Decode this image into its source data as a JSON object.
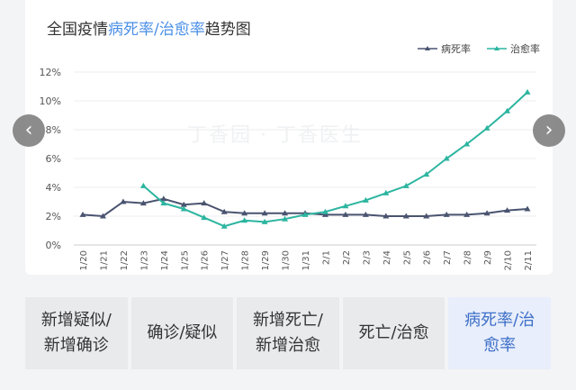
{
  "header": {
    "title_prefix": "全国疫情",
    "title_highlight": "病死率/治愈率",
    "title_suffix": "趋势图"
  },
  "watermark": "丁香园 · 丁香医生",
  "chart_data": {
    "type": "line",
    "title": "全国疫情病死率/治愈率趋势图",
    "categories": [
      "1/20",
      "1/21",
      "1/22",
      "1/23",
      "1/24",
      "1/25",
      "1/26",
      "1/27",
      "1/28",
      "1/29",
      "1/30",
      "1/31",
      "2/1",
      "2/2",
      "2/3",
      "2/4",
      "2/5",
      "2/6",
      "2/7",
      "2/8",
      "2/9",
      "2/10",
      "2/11"
    ],
    "y_ticks": [
      "0%",
      "2%",
      "4%",
      "6%",
      "8%",
      "10%",
      "12%"
    ],
    "ylim": [
      0,
      12
    ],
    "grid": true,
    "legend_position": "top-right",
    "series": [
      {
        "name": "病死率",
        "color": "#4a5470",
        "values": [
          2.1,
          2.0,
          3.0,
          2.9,
          3.2,
          2.8,
          2.9,
          2.3,
          2.2,
          2.2,
          2.2,
          2.2,
          2.1,
          2.1,
          2.1,
          2.0,
          2.0,
          2.0,
          2.1,
          2.1,
          2.2,
          2.4,
          2.5
        ]
      },
      {
        "name": "治愈率",
        "color": "#2cb5a0",
        "values": [
          null,
          null,
          null,
          4.1,
          2.9,
          2.5,
          1.9,
          1.3,
          1.7,
          1.6,
          1.8,
          2.1,
          2.3,
          2.7,
          3.1,
          3.6,
          4.1,
          4.9,
          6.0,
          7.0,
          8.1,
          9.3,
          10.6
        ]
      }
    ]
  },
  "tabs": [
    {
      "lines": [
        "新增疑似/",
        "新增确诊"
      ]
    },
    {
      "lines": [
        "确诊/疑似"
      ]
    },
    {
      "lines": [
        "新增死亡/",
        "新增治愈"
      ]
    },
    {
      "lines": [
        "死亡/治愈"
      ]
    },
    {
      "lines": [
        "病死率/治",
        "愈率"
      ]
    }
  ],
  "nav": {
    "prev": "‹",
    "next": "›"
  }
}
